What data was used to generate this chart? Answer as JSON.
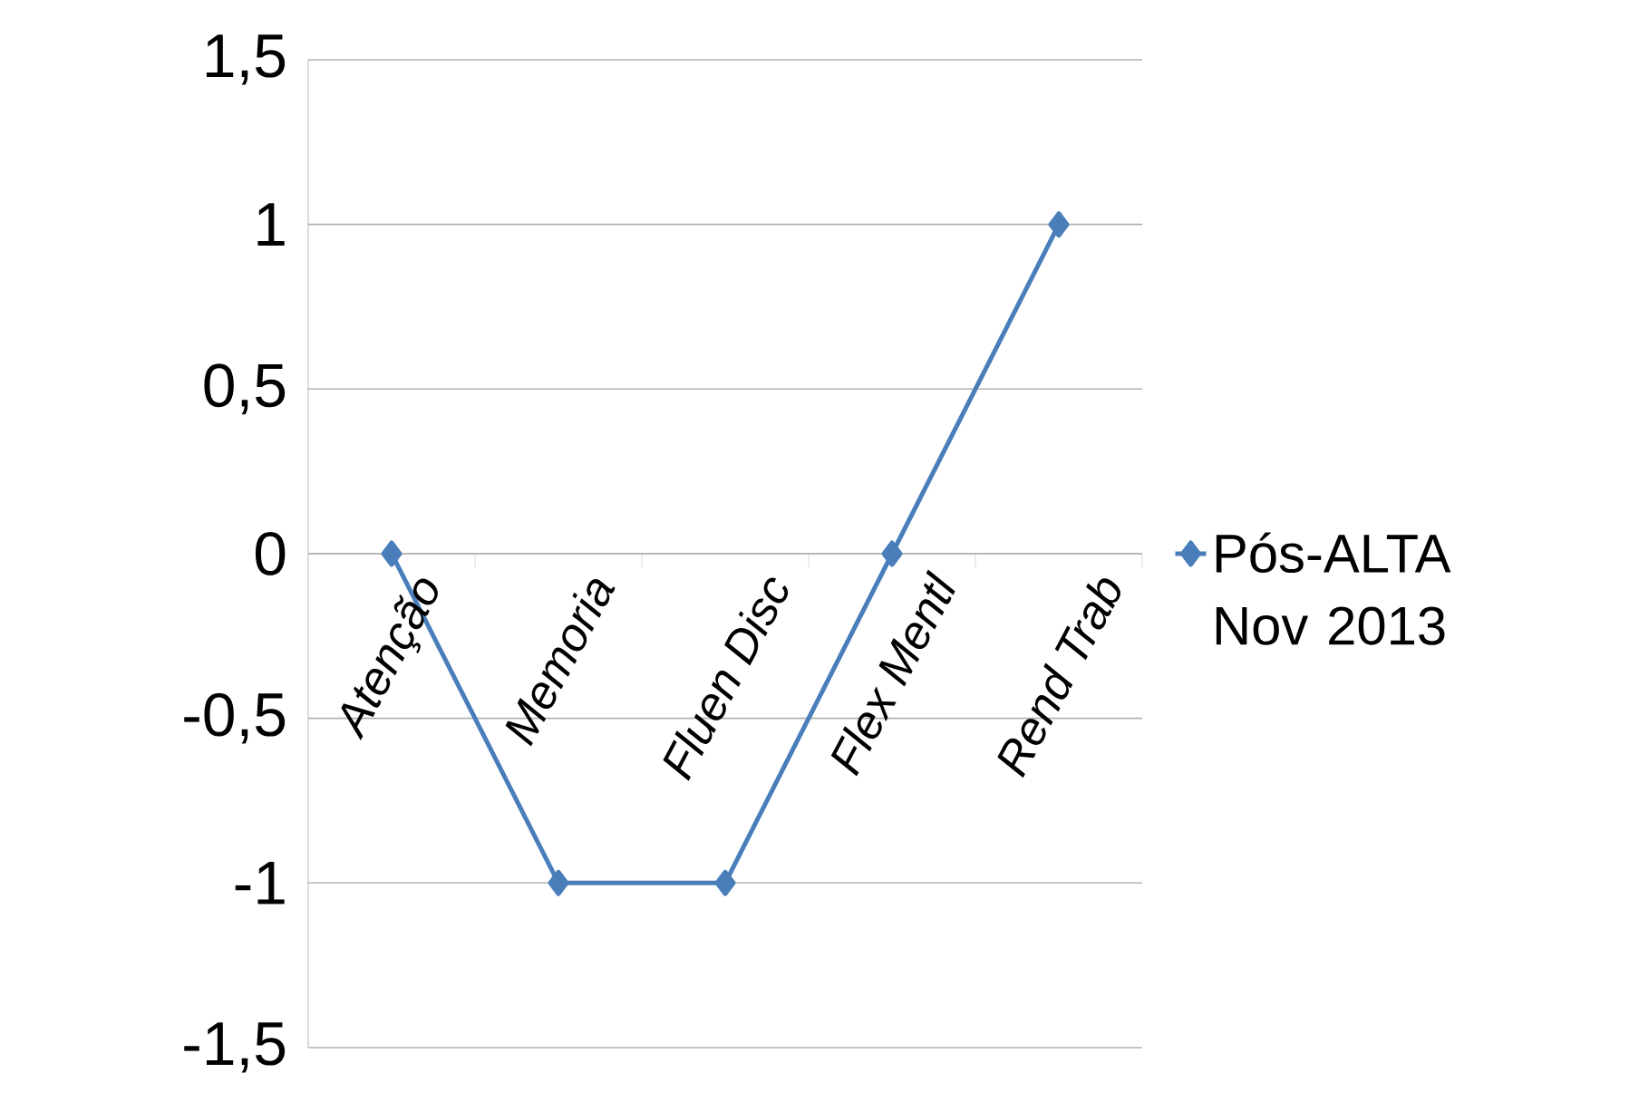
{
  "chart_data": {
    "type": "line",
    "categories": [
      "Atenção",
      "Memoria",
      "Fluen Disc",
      "Flex Mentl",
      "Rend Trab"
    ],
    "series": [
      {
        "name": "Pós-ALTA Nov 2013",
        "color": "#4a7ebb",
        "values": [
          0,
          -1,
          -1,
          0,
          1
        ]
      }
    ],
    "ylim": [
      -1.5,
      1.5
    ],
    "yticks": [
      {
        "value": -1.5,
        "label": "-1,5"
      },
      -1,
      {
        "value": -0.5,
        "label": "-0,5"
      },
      0,
      {
        "value": 0.5,
        "label": "0,5"
      },
      1,
      {
        "value": 1.5,
        "label": "1,5"
      }
    ],
    "grid": "y",
    "legend": "right",
    "marker": "diamond",
    "line_style": "solid"
  }
}
